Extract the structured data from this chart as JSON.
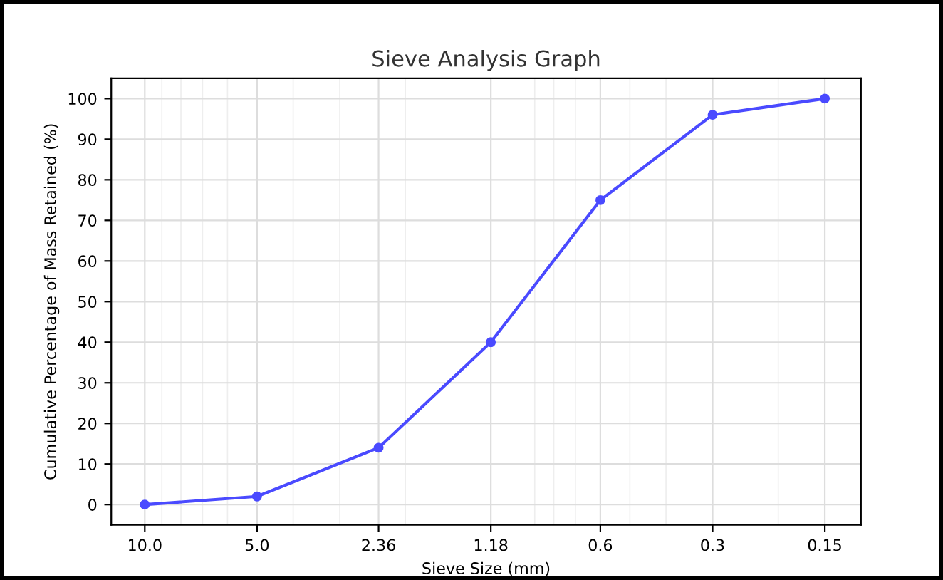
{
  "chart_data": {
    "type": "line",
    "title": "Sieve Analysis Graph",
    "xlabel": "Sieve Size (mm)",
    "ylabel": "Cumulative Percentage of Mass Retained (%)",
    "x": [
      10,
      5,
      2.36,
      1.18,
      0.6,
      0.3,
      0.15
    ],
    "series": [
      {
        "color": "#4a4aff",
        "values": [
          0,
          2,
          14,
          40,
          75,
          96,
          100
        ]
      }
    ],
    "log": "x",
    "xlim": [
      12.3,
      0.12
    ],
    "xticks": [
      {
        "value": 10,
        "label": "10.0"
      },
      {
        "value": 5,
        "label": "5.0"
      },
      2.36,
      1.18,
      0.6,
      0.3,
      0.15
    ],
    "ylim": [
      -5,
      105
    ],
    "yticks": [
      0,
      10,
      20,
      30,
      40,
      50,
      60,
      70,
      80,
      90,
      100
    ],
    "grid": true,
    "marker": "circle",
    "line_style": "solid"
  }
}
